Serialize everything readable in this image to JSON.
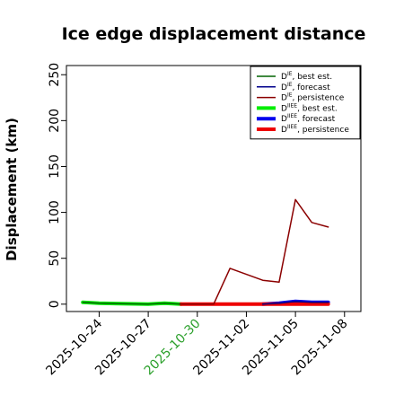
{
  "chart_data": {
    "type": "line",
    "title": "Ice edge displacement distance",
    "xlabel": "",
    "ylabel": "Displacement (km)",
    "ylim": [
      -8,
      260
    ],
    "xlim": [
      "2025-10-22",
      "2025-11-09"
    ],
    "y_ticks": [
      0,
      50,
      100,
      150,
      200,
      250
    ],
    "x_ticks": [
      "2025-10-24",
      "2025-10-27",
      "2025-10-30",
      "2025-11-02",
      "2025-11-05",
      "2025-11-08"
    ],
    "highlighted_tick": "2025-10-30",
    "highlight_color": "#2ca02c",
    "grid": false,
    "legend_position": "top-right",
    "series": [
      {
        "name": "D^IE, best est.",
        "legend_main": "D",
        "legend_sup": "IE",
        "legend_suffix": ", best est.",
        "color": "#006400",
        "width": "thin",
        "points": [
          [
            "2025-10-23",
            2
          ],
          [
            "2025-10-24",
            1
          ],
          [
            "2025-10-27",
            0
          ],
          [
            "2025-10-28",
            1
          ],
          [
            "2025-10-29",
            0
          ]
        ]
      },
      {
        "name": "D^IE, forecast",
        "legend_main": "D",
        "legend_sup": "IE",
        "legend_suffix": ", forecast",
        "color": "#00008b",
        "width": "thin",
        "points": [
          [
            "2025-11-03",
            0
          ],
          [
            "2025-11-04",
            1
          ],
          [
            "2025-11-05",
            3
          ],
          [
            "2025-11-06",
            2
          ],
          [
            "2025-11-07",
            2
          ]
        ]
      },
      {
        "name": "D^IE, persistence",
        "legend_main": "D",
        "legend_sup": "IE",
        "legend_suffix": ", persistence",
        "color": "#8b0000",
        "width": "thin",
        "points": [
          [
            "2025-10-29",
            0
          ],
          [
            "2025-10-30",
            0
          ],
          [
            "2025-10-31",
            0
          ],
          [
            "2025-11-01",
            39
          ],
          [
            "2025-11-03",
            26
          ],
          [
            "2025-11-04",
            24
          ],
          [
            "2025-11-05",
            114
          ],
          [
            "2025-11-06",
            89
          ],
          [
            "2025-11-07",
            84
          ]
        ]
      },
      {
        "name": "D^IIEE, best est.",
        "legend_main": "D",
        "legend_sup": "IIEE",
        "legend_suffix": ", best est.",
        "color": "#00ee00",
        "width": "thick",
        "points": [
          [
            "2025-10-23",
            2
          ],
          [
            "2025-10-24",
            1
          ],
          [
            "2025-10-27",
            0
          ],
          [
            "2025-10-28",
            1
          ],
          [
            "2025-10-29",
            0
          ]
        ]
      },
      {
        "name": "D^IIEE, forecast",
        "legend_main": "D",
        "legend_sup": "IIEE",
        "legend_suffix": ", forecast",
        "color": "#0000ee",
        "width": "thick",
        "points": [
          [
            "2025-11-03",
            0
          ],
          [
            "2025-11-04",
            1
          ],
          [
            "2025-11-05",
            3
          ],
          [
            "2025-11-06",
            2
          ],
          [
            "2025-11-07",
            2
          ]
        ]
      },
      {
        "name": "D^IIEE, persistence",
        "legend_main": "D",
        "legend_sup": "IIEE",
        "legend_suffix": ", persistence",
        "color": "#ee0000",
        "width": "thick",
        "points": [
          [
            "2025-10-29",
            0
          ],
          [
            "2025-10-30",
            0
          ],
          [
            "2025-10-31",
            0
          ],
          [
            "2025-11-03",
            0
          ],
          [
            "2025-11-04",
            0
          ],
          [
            "2025-11-05",
            0
          ],
          [
            "2025-11-06",
            0
          ],
          [
            "2025-11-07",
            0
          ]
        ]
      }
    ]
  }
}
